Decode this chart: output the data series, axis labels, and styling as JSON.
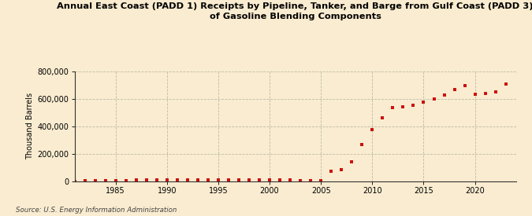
{
  "title": "Annual East Coast (PADD 1) Receipts by Pipeline, Tanker, and Barge from Gulf Coast (PADD 3)\nof Gasoline Blending Components",
  "ylabel": "Thousand Barrels",
  "source": "Source: U.S. Energy Information Administration",
  "background_color": "#faecd0",
  "marker_color": "#cc1111",
  "years": [
    1981,
    1982,
    1983,
    1984,
    1985,
    1986,
    1987,
    1988,
    1989,
    1990,
    1991,
    1992,
    1993,
    1994,
    1995,
    1996,
    1997,
    1998,
    1999,
    2000,
    2001,
    2002,
    2003,
    2004,
    2005,
    2006,
    2007,
    2008,
    2009,
    2010,
    2011,
    2012,
    2013,
    2014,
    2015,
    2016,
    2017,
    2018,
    2019,
    2020,
    2021,
    2022,
    2023
  ],
  "values": [
    2000,
    3000,
    5000,
    6000,
    7000,
    8000,
    9000,
    10000,
    11000,
    12000,
    10000,
    11000,
    12000,
    13000,
    14000,
    13000,
    14000,
    13000,
    12000,
    11000,
    10000,
    9000,
    8000,
    7000,
    5000,
    75000,
    85000,
    140000,
    270000,
    375000,
    460000,
    535000,
    540000,
    555000,
    575000,
    600000,
    630000,
    665000,
    695000,
    635000,
    640000,
    650000,
    710000
  ],
  "ylim": [
    0,
    800000
  ],
  "yticks": [
    0,
    200000,
    400000,
    600000,
    800000
  ],
  "xlim": [
    1981,
    2024
  ],
  "xticks": [
    1985,
    1990,
    1995,
    2000,
    2005,
    2010,
    2015,
    2020
  ]
}
